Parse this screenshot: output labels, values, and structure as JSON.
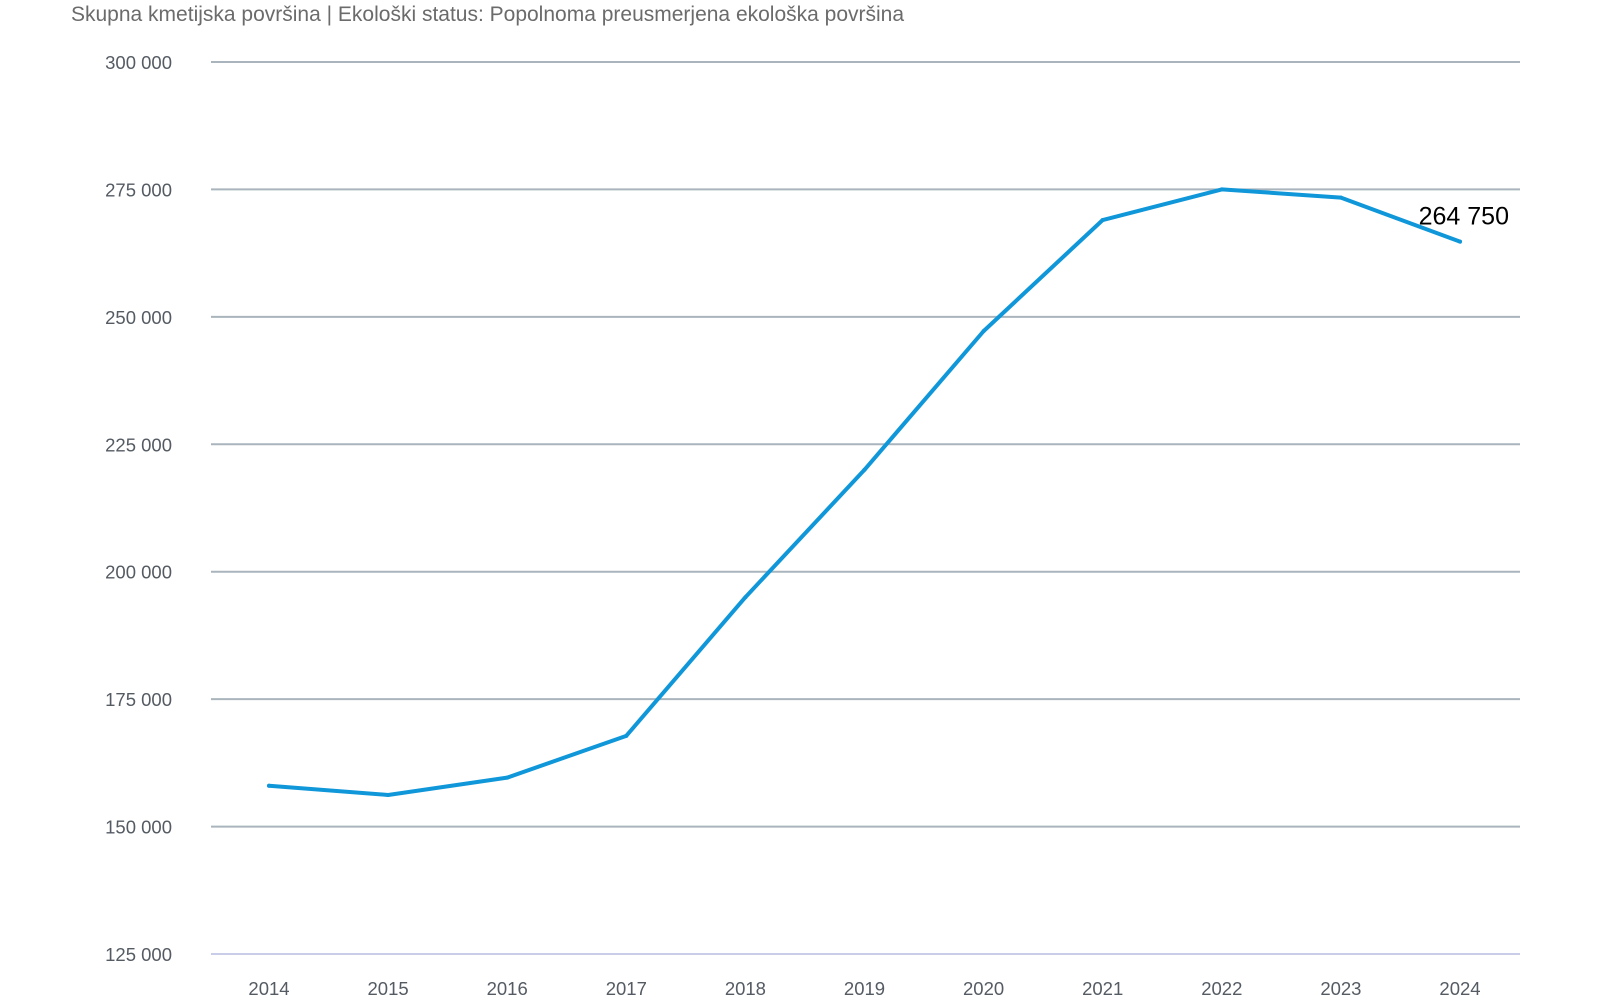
{
  "title": "Skupna kmetijska površina | Ekološki status: Popolnoma preusmerjena ekološka površina",
  "chart_data": {
    "type": "line",
    "title": "Skupna kmetijska površina | Ekološki status: Popolnoma preusmerjena ekološka površina",
    "xlabel": "",
    "ylabel": "",
    "categories": [
      "2014",
      "2015",
      "2016",
      "2017",
      "2018",
      "2019",
      "2020",
      "2021",
      "2022",
      "2023",
      "2024"
    ],
    "series": [
      {
        "values": [
          158000,
          156200,
          159600,
          167800,
          195000,
          220000,
          247200,
          269000,
          275000,
          273400,
          264750
        ],
        "color": "#0f97d9"
      }
    ],
    "ylim": [
      125000,
      300000
    ],
    "yticks": [
      125000,
      150000,
      175000,
      200000,
      225000,
      250000,
      275000,
      300000
    ],
    "ytick_labels": [
      "125 000",
      "150 000",
      "175 000",
      "200 000",
      "225 000",
      "250 000",
      "275 000",
      "300 000"
    ],
    "grid": true,
    "legend": "none",
    "annotation": {
      "category": "2024",
      "text": "264 750"
    },
    "colors": {
      "line": "#0f97d9",
      "grid": "#a9b4bd",
      "baseline": "#c9cde8",
      "tick_text": "#555b63"
    }
  }
}
